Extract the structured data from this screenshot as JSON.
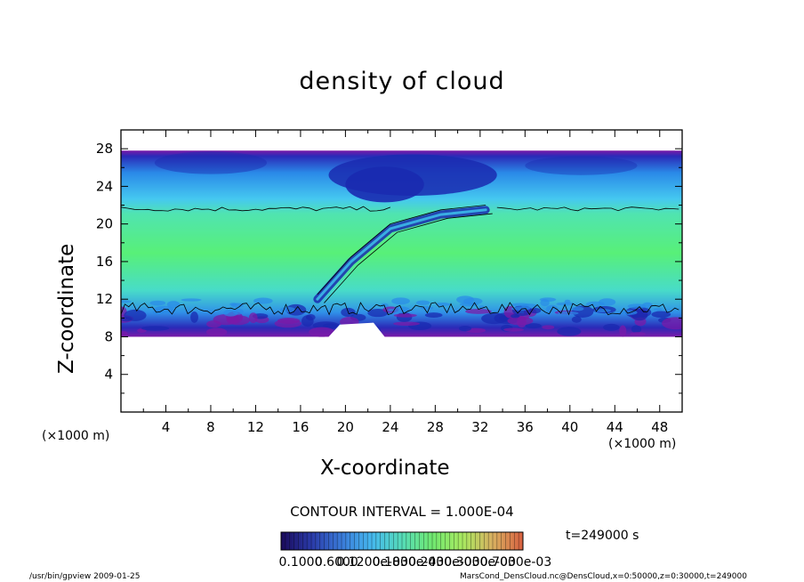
{
  "chart_data": {
    "type": "heatmap",
    "title": "density of cloud",
    "xlabel": "X-coordinate",
    "ylabel": "Z-coordinate",
    "x_unit": "(×1000 m)",
    "y_unit": "(×1000 m)",
    "xlim": [
      0,
      50
    ],
    "ylim": [
      0,
      30
    ],
    "x_ticks": [
      4,
      8,
      12,
      16,
      20,
      24,
      28,
      32,
      36,
      40,
      44,
      48
    ],
    "y_ticks": [
      4,
      8,
      12,
      16,
      20,
      24,
      28
    ],
    "contour_interval": "CONTOUR INTERVAL = 1.000E-04",
    "time_label": "t=249000 s",
    "colorbar_labels": [
      "0.1000",
      "0.6000",
      "0.1200e-03",
      "0.1800e-03",
      "0.2400e-03",
      "0.3000e-03",
      "0.7000e-03"
    ],
    "colorbar_colors": [
      "#1a0a5a",
      "#2a3aa8",
      "#3a7ad8",
      "#45b8ee",
      "#55dcb8",
      "#70e870",
      "#a8e860",
      "#d8b060",
      "#d86040"
    ],
    "field_colors": {
      "cloud_free": "#ffffff",
      "base_edge": "#7a1aa8",
      "low_density": "#1a2ab0",
      "mid_low": "#2a8ae8",
      "mid": "#40c8f0",
      "mid_high": "#45dcc0",
      "high_density": "#55f080"
    },
    "cloud_layer": {
      "bottom_z": 8.0,
      "top_z": 27.8,
      "contour_lower_z": 11.0,
      "contour_upper_z": 21.6
    },
    "plume": [
      {
        "x": 17.5,
        "z": 12.0
      },
      {
        "x": 20.5,
        "z": 16.0
      },
      {
        "x": 24.0,
        "z": 19.5
      },
      {
        "x": 28.5,
        "z": 21.0
      },
      {
        "x": 32.5,
        "z": 21.5
      }
    ],
    "gap_region": [
      {
        "x": 18.5,
        "z": 8.0
      },
      {
        "x": 19.5,
        "z": 9.3
      },
      {
        "x": 22.5,
        "z": 9.5
      },
      {
        "x": 23.5,
        "z": 8.0
      }
    ]
  },
  "footer": {
    "left": "/usr/bin/gpview   2009-01-25",
    "right": "MarsCond_DensCloud.nc@DensCloud,x=0:50000,z=0:30000,t=249000"
  }
}
